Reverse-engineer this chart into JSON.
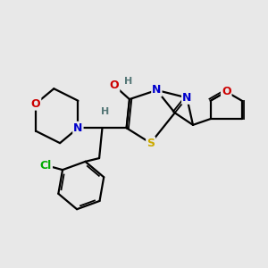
{
  "bg_color": "#e8e8e8",
  "atom_colors": {
    "C": "#000000",
    "N": "#0000cc",
    "O": "#cc0000",
    "S": "#ccaa00",
    "Cl": "#00aa00",
    "H": "#557777"
  },
  "bond_color": "#000000",
  "bond_width": 1.6
}
